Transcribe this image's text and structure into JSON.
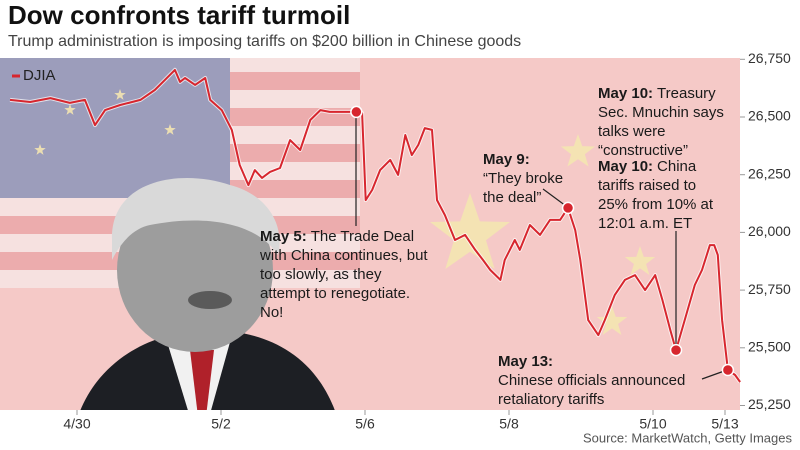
{
  "chart_data": {
    "type": "line",
    "title": "Dow confronts tariff turmoil",
    "subtitle": "Trump administration is imposing tariffs on $200 billion in Chinese goods",
    "source": "Source: MarketWatch, Getty Images",
    "xlim": [
      0,
      10.25
    ],
    "xticks": [
      {
        "value": 1,
        "label": "4/30"
      },
      {
        "value": 3,
        "label": "5/2"
      },
      {
        "value": 5,
        "label": "5/6"
      },
      {
        "value": 7,
        "label": "5/8"
      },
      {
        "value": 9,
        "label": "5/10"
      },
      {
        "value": 10,
        "label": "5/13"
      }
    ],
    "ylim": [
      25250,
      26750
    ],
    "yticks": [
      {
        "value": 25250,
        "label": "25,250"
      },
      {
        "value": 25500,
        "label": "25,500"
      },
      {
        "value": 25750,
        "label": "25,750"
      },
      {
        "value": 26000,
        "label": "26,000"
      },
      {
        "value": 26250,
        "label": "26,250"
      },
      {
        "value": 26500,
        "label": "26,500"
      },
      {
        "value": 26750,
        "label": "26,750"
      }
    ],
    "x": [
      0.07,
      0.35,
      0.63,
      0.9,
      1.11,
      1.25,
      1.39,
      1.6,
      1.88,
      2.08,
      2.22,
      2.36,
      2.43,
      2.5,
      2.64,
      2.78,
      2.85,
      3.01,
      3.15,
      3.26,
      3.38,
      3.47,
      3.57,
      3.68,
      3.82,
      3.96,
      4.1,
      4.24,
      4.38,
      4.51,
      4.72,
      4.88,
      4.96,
      5.01,
      5.1,
      5.21,
      5.35,
      5.46,
      5.56,
      5.65,
      5.74,
      5.83,
      5.93,
      6.0,
      6.11,
      6.25,
      6.39,
      6.53,
      6.64,
      6.74,
      6.88,
      6.94,
      7.08,
      7.15,
      7.29,
      7.43,
      7.57,
      7.71,
      7.82,
      7.92,
      7.99,
      8.1,
      8.24,
      8.33,
      8.47,
      8.61,
      8.75,
      8.89,
      9.03,
      9.13,
      9.24,
      9.32,
      9.44,
      9.58,
      9.68,
      9.79,
      9.85,
      9.9,
      9.96,
      10.04,
      10.14,
      10.21
    ],
    "series": [
      {
        "name": "DJIA",
        "color": "#d7262e",
        "values": [
          26574,
          26565,
          26582,
          26561,
          26574,
          26465,
          26530,
          26552,
          26574,
          26617,
          26660,
          26704,
          26652,
          26669,
          26639,
          26669,
          26574,
          26530,
          26444,
          26292,
          26205,
          26270,
          26236,
          26262,
          26279,
          26400,
          26357,
          26487,
          26530,
          26522,
          26522,
          26522,
          26517,
          26140,
          26184,
          26270,
          26314,
          26249,
          26422,
          26335,
          26379,
          26452,
          26444,
          26140,
          26075,
          25967,
          25989,
          25924,
          25880,
          25837,
          25794,
          25880,
          25967,
          25924,
          26032,
          25989,
          26054,
          26054,
          26106,
          26010,
          25880,
          25620,
          25555,
          25620,
          25729,
          25794,
          25815,
          25750,
          25815,
          25707,
          25577,
          25490,
          25620,
          25772,
          25837,
          25945,
          25945,
          25902,
          25620,
          25404,
          25382,
          25352
        ]
      }
    ],
    "annotations": [
      {
        "date": "May 5:",
        "lines": [
          "The Trade Deal",
          "with China continues, but",
          "too slowly, as they",
          "attempt to renegotiate.",
          "No!"
        ],
        "x": 4.88,
        "value": 26522
      },
      {
        "date": "May 9:",
        "lines": [
          "“They broke",
          "the deal”"
        ],
        "x": 7.82,
        "value": 26106
      },
      {
        "date": "May 10:",
        "lines": [
          "Treasury",
          "Sec. Mnuchin says",
          "talks were",
          "“constructive”"
        ]
      },
      {
        "date": "May 10:",
        "lines": [
          "China",
          "tariffs raised to",
          "25% from 10% at",
          "12:01 a.m. ET"
        ],
        "x": 9.32,
        "value": 25490
      },
      {
        "date": "May 13:",
        "lines": [
          "Chinese officials announced",
          "retaliatory tariffs"
        ],
        "x": 10.04,
        "value": 25404
      }
    ]
  }
}
